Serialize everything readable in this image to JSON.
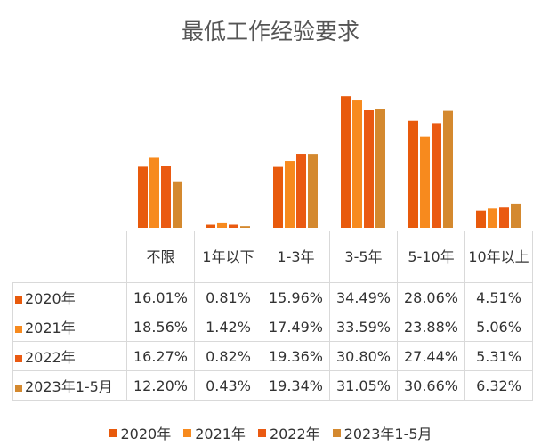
{
  "chart_data": {
    "type": "bar",
    "title": "最低工作经验要求",
    "categories": [
      "不限",
      "1年以下",
      "1-3年",
      "3-5年",
      "5-10年",
      "10年以上"
    ],
    "series": [
      {
        "name": "2020年",
        "color": "#e85a0c",
        "values": [
          16.01,
          0.81,
          15.96,
          34.49,
          28.06,
          4.51
        ],
        "labels": [
          "16.01%",
          "0.81%",
          "15.96%",
          "34.49%",
          "28.06%",
          "4.51%"
        ]
      },
      {
        "name": "2021年",
        "color": "#f78a1e",
        "values": [
          18.56,
          1.42,
          17.49,
          33.59,
          23.88,
          5.06
        ],
        "labels": [
          "18.56%",
          "1.42%",
          "17.49%",
          "33.59%",
          "23.88%",
          "5.06%"
        ]
      },
      {
        "name": "2022年",
        "color": "#ea5a12",
        "values": [
          16.27,
          0.82,
          19.36,
          30.8,
          27.44,
          5.31
        ],
        "labels": [
          "16.27%",
          "0.82%",
          "19.36%",
          "30.80%",
          "27.44%",
          "5.31%"
        ]
      },
      {
        "name": "2023年1-5月",
        "color": "#d4892f",
        "values": [
          12.2,
          0.43,
          19.34,
          31.05,
          30.66,
          6.32
        ],
        "labels": [
          "12.20%",
          "0.43%",
          "19.34%",
          "31.05%",
          "30.66%",
          "6.32%"
        ]
      }
    ],
    "ylim": [
      0,
      35
    ],
    "grid": false,
    "legend": "bottom",
    "data_table": true
  }
}
